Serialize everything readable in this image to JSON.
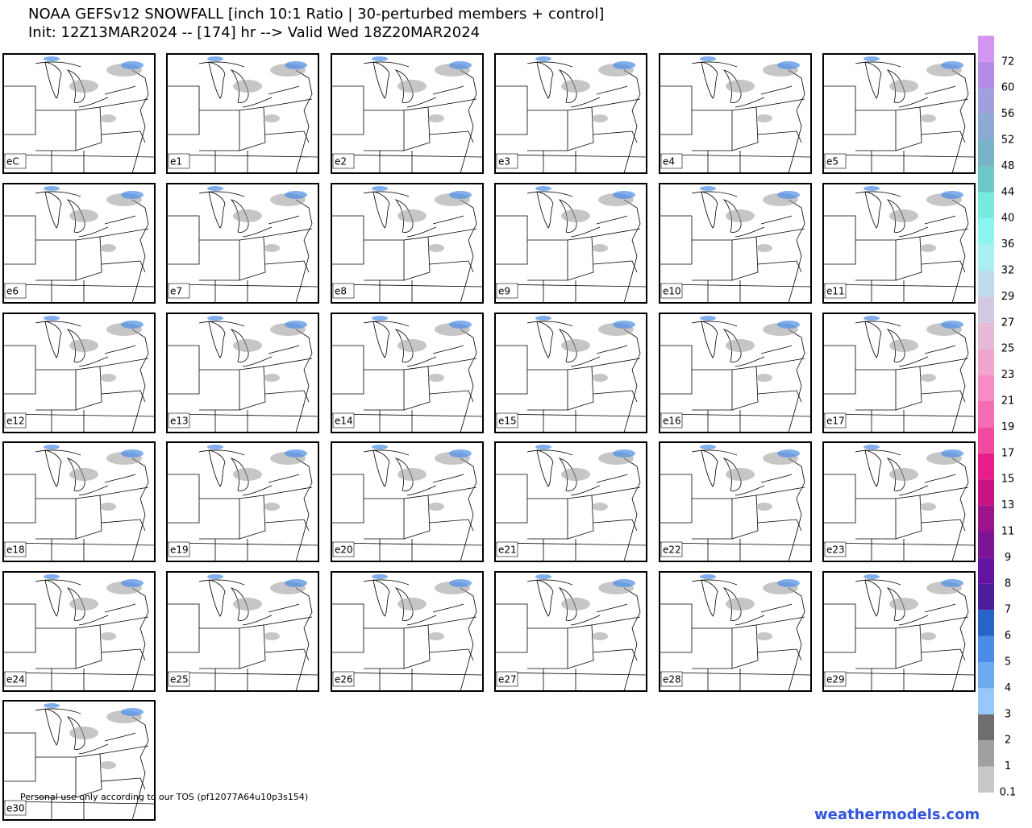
{
  "title": [
    "NOAA GEFSv12 SNOWFALL [inch 10:1 Ratio | 30-perturbed members + control]",
    "Init: 12Z13MAR2024 -- [174] hr --> Valid Wed 18Z20MAR2024"
  ],
  "panels": [
    "eC",
    "e1",
    "e2",
    "e3",
    "e4",
    "e5",
    "e6",
    "e7",
    "e8",
    "e9",
    "e10",
    "e11",
    "e12",
    "e13",
    "e14",
    "e15",
    "e16",
    "e17",
    "e18",
    "e19",
    "e20",
    "e21",
    "e22",
    "e23",
    "e24",
    "e25",
    "e26",
    "e27",
    "e28",
    "e29",
    "e30"
  ],
  "colorbar": {
    "labels": [
      0.1,
      1,
      2,
      3,
      4,
      5,
      6,
      7,
      8,
      9,
      11,
      13,
      15,
      17,
      19,
      21,
      23,
      25,
      27,
      29,
      32,
      36,
      40,
      44,
      48,
      52,
      56,
      60,
      72
    ],
    "colors": [
      "#c8c8c8",
      "#a0a0a0",
      "#6e6e6e",
      "#96c8fa",
      "#6eaaf0",
      "#4b8ce6",
      "#2864c8",
      "#4b1e9b",
      "#6414a0",
      "#7d1496",
      "#9b148c",
      "#c81482",
      "#e61e8c",
      "#f04ba0",
      "#f56eb4",
      "#f58cc3",
      "#f0a5cd",
      "#e6b9d7",
      "#d2c8e1",
      "#bedceb",
      "#aaf0f0",
      "#8cf5f0",
      "#78ebe1",
      "#6ec8c8",
      "#78b4c8",
      "#8caad2",
      "#a0a0dc",
      "#b48ce6",
      "#d296f0"
    ]
  },
  "footer": "Personal use only according to our TOS (pf12077A64u10p3s154)",
  "site": "weathermodels.com"
}
